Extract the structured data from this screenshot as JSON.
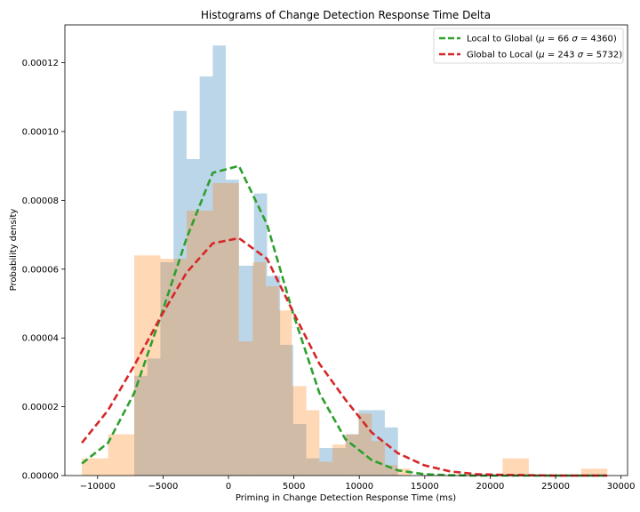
{
  "chart_data": {
    "type": "bar",
    "title": "Histograms of Change Detection Response Time Delta",
    "xlabel": "Priming in Change Detection Response Time (ms)",
    "ylabel": "Probability density",
    "xlim": [
      -12500,
      30500
    ],
    "ylim": [
      0,
      0.000131
    ],
    "xticks": [
      -10000,
      -5000,
      0,
      5000,
      10000,
      15000,
      20000,
      25000,
      30000
    ],
    "xtick_labels": [
      "−10000",
      "−5000",
      "0",
      "5000",
      "10000",
      "15000",
      "20000",
      "25000",
      "30000"
    ],
    "yticks": [
      0,
      2e-05,
      4e-05,
      6e-05,
      8e-05,
      0.0001,
      0.00012
    ],
    "ytick_labels": [
      "0.00000",
      "0.00002",
      "0.00004",
      "0.00006",
      "0.00008",
      "0.00010",
      "0.00012"
    ],
    "grid": false,
    "legend_position": "top-right",
    "histograms": [
      {
        "color": "#1f77b4",
        "opacity": 0.3,
        "edges": [
          -7200,
          -6200,
          -5200,
          -4200,
          -3200,
          -2200,
          -1200,
          -200,
          800,
          1950,
          2950,
          3950,
          4950,
          5950,
          6950,
          7950,
          8950,
          9950,
          10950,
          11950,
          12950
        ],
        "values": [
          2.9e-05,
          3.4e-05,
          6.2e-05,
          0.000106,
          9.2e-05,
          0.000116,
          0.000125,
          8.6e-05,
          6.1e-05,
          8.2e-05,
          5.8e-05,
          3.8e-05,
          1.5e-05,
          5e-06,
          8e-06,
          8e-06,
          1.2e-05,
          1.9e-05,
          1.9e-05,
          1.4e-05
        ]
      },
      {
        "color": "#ff7f0e",
        "opacity": 0.3,
        "edges": [
          -11200,
          -9200,
          -7200,
          -5200,
          -3200,
          -1200,
          800,
          1850,
          2850,
          3850,
          4850,
          5950,
          6950,
          7950,
          8950,
          9950,
          10950,
          11950,
          12950,
          13950,
          20950,
          22950,
          26950,
          28950
        ],
        "values": [
          5e-06,
          1.2e-05,
          6.4e-05,
          6.3e-05,
          7.7e-05,
          8.5e-05,
          3.9e-05,
          6.2e-05,
          5.5e-05,
          4.8e-05,
          2.6e-05,
          1.9e-05,
          4e-06,
          9e-06,
          1.2e-05,
          1.8e-05,
          1e-05,
          3e-06,
          2e-06,
          0.0,
          5e-06,
          0.0,
          2e-06
        ]
      }
    ],
    "series": [
      {
        "name": "Local to Global (μ = 66 σ = 4360)",
        "color": "#2ca02c",
        "style": "dashed",
        "x": [
          -11200,
          -9200,
          -7200,
          -5200,
          -3200,
          -1200,
          800,
          2950,
          4950,
          6950,
          8950,
          10950,
          12950,
          14950,
          16950,
          18950,
          20950,
          22950,
          24950,
          26950,
          28950
        ],
        "y": [
          3.5e-06,
          9.5e-06,
          2.4e-05,
          4.6e-05,
          6.9e-05,
          8.8e-05,
          9e-05,
          7.3e-05,
          4.7e-05,
          2.4e-05,
          1.05e-05,
          4.5e-06,
          1.5e-06,
          4e-07,
          1e-07,
          0,
          0,
          0,
          0,
          0,
          0
        ]
      },
      {
        "name": "Global to Local (μ = 243 σ = 5732)",
        "color": "#d62728",
        "style": "dashed",
        "x": [
          -11200,
          -9200,
          -7200,
          -5200,
          -3200,
          -1200,
          800,
          2950,
          4950,
          6950,
          8950,
          10950,
          12950,
          14950,
          16950,
          18950,
          20950,
          22950,
          24950,
          26950,
          28950
        ],
        "y": [
          9.5e-06,
          1.9e-05,
          3.2e-05,
          4.6e-05,
          5.9e-05,
          6.75e-05,
          6.9e-05,
          6.3e-05,
          4.75e-05,
          3.25e-05,
          2.2e-05,
          1.25e-05,
          6.5e-06,
          3e-06,
          1.2e-06,
          4e-07,
          2e-07,
          1e-07,
          0,
          0,
          0
        ]
      }
    ],
    "legend": [
      {
        "label_prefix": "Local to Global (",
        "mu_symbol": "μ",
        "mu_eq": " = 66 ",
        "sigma_symbol": "σ",
        "sigma_eq": " = 4360)"
      },
      {
        "label_prefix": "Global to Local (",
        "mu_symbol": "μ",
        "mu_eq": " = 243 ",
        "sigma_symbol": "σ",
        "sigma_eq": " = 5732)"
      }
    ]
  }
}
